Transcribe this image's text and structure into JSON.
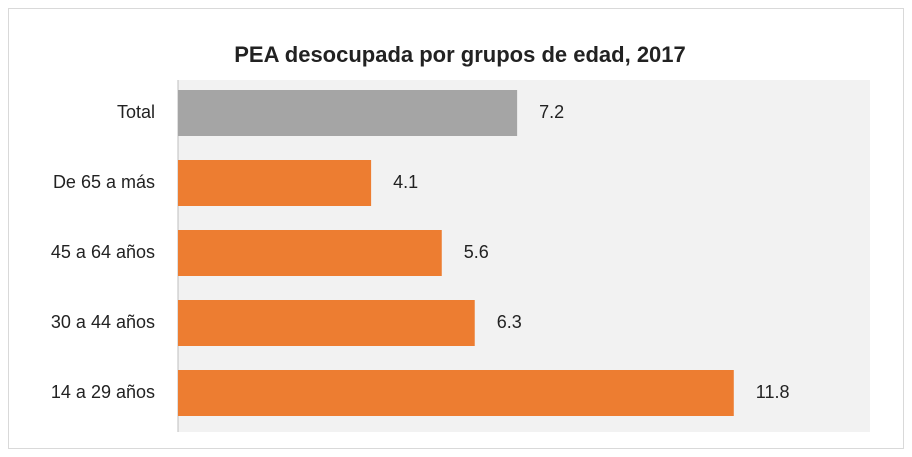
{
  "chart_data": {
    "type": "barh",
    "title": "PEA desocupada por grupos de edad, 2017",
    "categories": [
      "Total",
      "De 65 a más",
      "45 a 64 años",
      "30 a 44 años",
      "14 a 29 años"
    ],
    "values": [
      7.2,
      4.1,
      5.6,
      6.3,
      11.8
    ],
    "colors": [
      "#a5a5a5",
      "#ed7d31",
      "#ed7d31",
      "#ed7d31",
      "#ed7d31"
    ]
  }
}
